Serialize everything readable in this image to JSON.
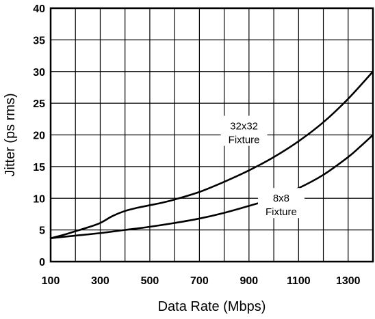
{
  "chart_data": {
    "type": "line",
    "xlabel": "Data Rate (Mbps)",
    "ylabel": "Jitter (ps rms)",
    "xlim": [
      100,
      1400
    ],
    "ylim": [
      0,
      40
    ],
    "xticks": [
      100,
      300,
      500,
      700,
      900,
      1100,
      1300
    ],
    "yticks": [
      0,
      5,
      10,
      15,
      20,
      25,
      30,
      35,
      40
    ],
    "grid": true,
    "grid_step_x": 100,
    "grid_step_y": 5,
    "series": [
      {
        "name": "32x32 Fixture",
        "label_lines": [
          "32x32",
          "Fixture"
        ],
        "label_at": [
          880,
          20
        ],
        "x": [
          100,
          150,
          200,
          250,
          300,
          350,
          400,
          450,
          500,
          550,
          600,
          700,
          800,
          900,
          1000,
          1100,
          1200,
          1300,
          1400
        ],
        "y": [
          3.7,
          4.2,
          4.8,
          5.4,
          6.1,
          7.2,
          8.0,
          8.5,
          8.9,
          9.3,
          9.8,
          11.0,
          12.6,
          14.4,
          16.5,
          19.0,
          22.0,
          25.7,
          30.0
        ]
      },
      {
        "name": "8x8 Fixture",
        "label_lines": [
          "8x8",
          "Fixture"
        ],
        "label_at": [
          1030,
          8.6
        ],
        "x": [
          100,
          200,
          300,
          400,
          500,
          600,
          700,
          800,
          900,
          1000,
          1100,
          1200,
          1300,
          1350,
          1400
        ],
        "y": [
          3.7,
          4.1,
          4.5,
          5.0,
          5.5,
          6.1,
          6.8,
          7.7,
          8.8,
          10.0,
          11.6,
          13.7,
          16.5,
          18.2,
          20.0
        ]
      }
    ]
  }
}
